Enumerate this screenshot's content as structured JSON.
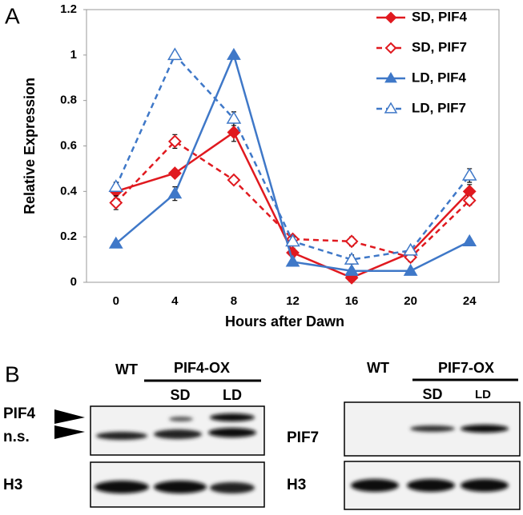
{
  "panel_labels": [
    "A",
    "B"
  ],
  "chart_data": {
    "type": "line",
    "x_label": "Hours after Dawn",
    "y_label": "Relative Expression",
    "categories": [
      "0",
      "4",
      "8",
      "12",
      "16",
      "20",
      "24"
    ],
    "ylim": [
      0,
      1.2
    ],
    "yticks": [
      0,
      0.2,
      0.4,
      0.6,
      0.8,
      1,
      1.2
    ],
    "legend": "upper right",
    "series": [
      {
        "name": "SD, PIF4",
        "color": "#e0191f",
        "marker": "diamond",
        "filled": true,
        "dashed": false,
        "values": [
          0.4,
          0.48,
          0.66,
          0.13,
          0.02,
          0.13,
          0.4
        ],
        "errors": [
          0.03,
          0.01,
          0.04,
          0.02,
          0.01,
          0.02,
          0.03
        ]
      },
      {
        "name": "SD, PIF7",
        "color": "#e0191f",
        "marker": "diamond",
        "filled": false,
        "dashed": true,
        "values": [
          0.35,
          0.62,
          0.45,
          0.19,
          0.18,
          0.11,
          0.36
        ],
        "errors": [
          0.03,
          0.03,
          0.01,
          0.01,
          0.02,
          0.02,
          0.02
        ]
      },
      {
        "name": "LD, PIF4",
        "color": "#3f78c8",
        "marker": "triangle",
        "filled": true,
        "dashed": false,
        "values": [
          0.17,
          0.39,
          1.0,
          0.09,
          0.05,
          0.05,
          0.18
        ],
        "errors": [
          0.01,
          0.03,
          0.01,
          0.01,
          0.01,
          0.01,
          0.01
        ]
      },
      {
        "name": "LD, PIF7",
        "color": "#3f78c8",
        "marker": "triangle",
        "filled": false,
        "dashed": true,
        "values": [
          0.42,
          1.0,
          0.72,
          0.18,
          0.1,
          0.14,
          0.47
        ],
        "errors": [
          0.02,
          0.01,
          0.03,
          0.02,
          0.02,
          0.01,
          0.03
        ]
      }
    ]
  },
  "blots": {
    "left": {
      "control": "WT",
      "line": "PIF4-OX",
      "conditions": [
        "SD",
        "LD"
      ],
      "rows": [
        "PIF4",
        "n.s.",
        "H3"
      ]
    },
    "right": {
      "control": "WT",
      "line": "PIF7-OX",
      "conditions": [
        "SD",
        "LD"
      ],
      "rows": [
        "PIF7",
        "H3"
      ]
    }
  }
}
